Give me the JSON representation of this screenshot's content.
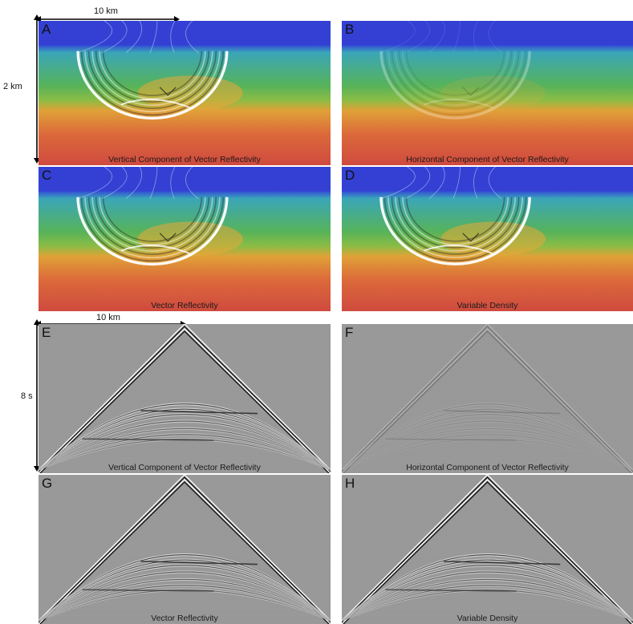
{
  "scale_bars": {
    "top_horizontal": "10 km",
    "top_vertical": "2 km",
    "bottom_horizontal": "10 km",
    "bottom_vertical": "8 s"
  },
  "panels": [
    {
      "id": "A",
      "letter": "A",
      "caption": "Vertical Component of Vector Reflectivity",
      "kind": "velocity",
      "strength": 1.0
    },
    {
      "id": "B",
      "letter": "B",
      "caption": "Horizontal Component of Vector Reflectivity",
      "kind": "velocity",
      "strength": 0.3
    },
    {
      "id": "C",
      "letter": "C",
      "caption": "Vector Reflectivity",
      "kind": "velocity",
      "strength": 1.0
    },
    {
      "id": "D",
      "letter": "D",
      "caption": "Variable Density",
      "kind": "velocity",
      "strength": 1.0
    },
    {
      "id": "E",
      "letter": "E",
      "caption": "Vertical Component of Vector Reflectivity",
      "kind": "gather",
      "strength": 1.0
    },
    {
      "id": "F",
      "letter": "F",
      "caption": "Horizontal Component of Vector Reflectivity",
      "kind": "gather",
      "strength": 0.25
    },
    {
      "id": "G",
      "letter": "G",
      "caption": "Vector Reflectivity",
      "kind": "gather",
      "strength": 1.0
    },
    {
      "id": "H",
      "letter": "H",
      "caption": "Variable Density",
      "kind": "gather",
      "strength": 1.0
    }
  ]
}
